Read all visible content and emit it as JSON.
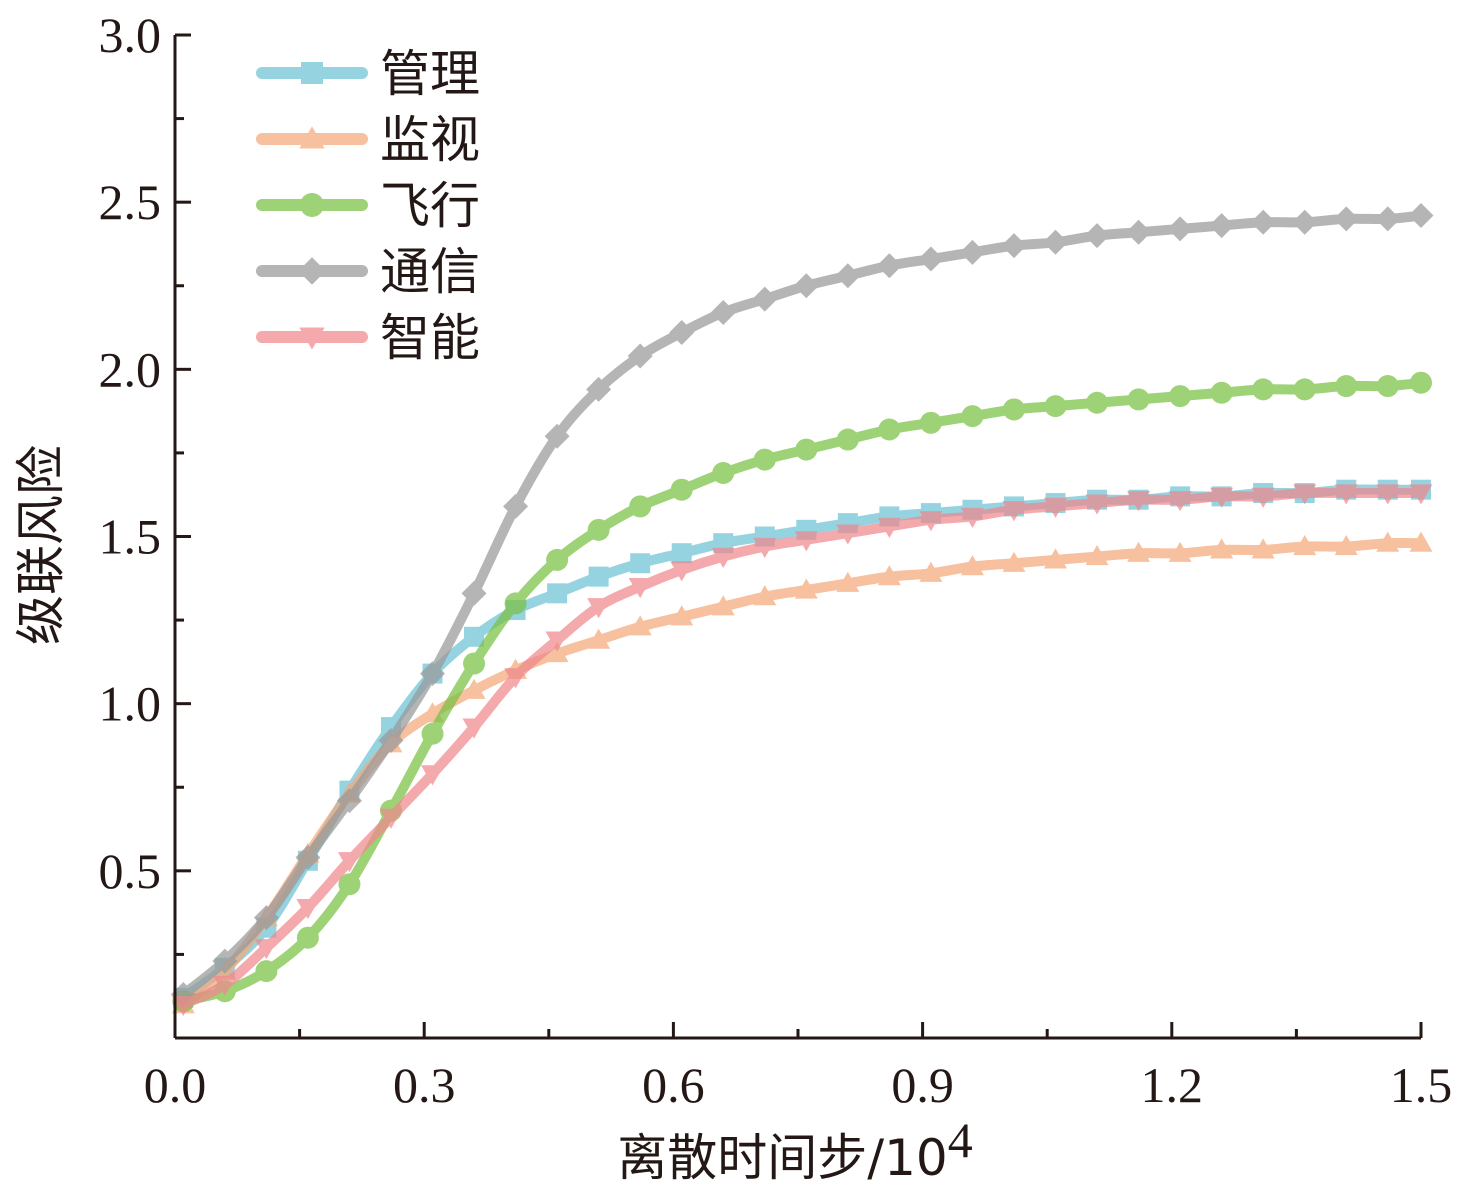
{
  "chart_data": {
    "type": "line",
    "xlabel": "离散时间步/10",
    "xlabel_sup": "4",
    "ylabel": "级联风险",
    "xlim": [
      0.0,
      1.5
    ],
    "ylim": [
      0.0,
      3.0
    ],
    "xticks": [
      "0.0",
      "0.3",
      "0.6",
      "0.9",
      "1.2",
      "1.5"
    ],
    "yticks": [
      "0.5",
      "1.0",
      "1.5",
      "2.0",
      "2.5",
      "3.0"
    ],
    "legend_position": "top-left",
    "x": [
      0.01,
      0.06,
      0.11,
      0.16,
      0.21,
      0.26,
      0.31,
      0.36,
      0.41,
      0.46,
      0.51,
      0.56,
      0.61,
      0.66,
      0.71,
      0.76,
      0.81,
      0.86,
      0.91,
      0.96,
      1.01,
      1.06,
      1.11,
      1.16,
      1.21,
      1.26,
      1.31,
      1.36,
      1.41,
      1.46,
      1.5
    ],
    "series": [
      {
        "name": "管理",
        "color": "#6cc3d3",
        "marker": "square",
        "values": [
          0.12,
          0.21,
          0.33,
          0.53,
          0.74,
          0.93,
          1.09,
          1.2,
          1.28,
          1.33,
          1.38,
          1.42,
          1.45,
          1.48,
          1.5,
          1.52,
          1.54,
          1.56,
          1.57,
          1.58,
          1.59,
          1.6,
          1.61,
          1.61,
          1.62,
          1.62,
          1.63,
          1.63,
          1.64,
          1.64,
          1.64
        ]
      },
      {
        "name": "监视",
        "color": "#f5a97a",
        "marker": "triangle-up",
        "values": [
          0.1,
          0.2,
          0.36,
          0.55,
          0.73,
          0.88,
          0.97,
          1.04,
          1.1,
          1.15,
          1.19,
          1.23,
          1.26,
          1.29,
          1.32,
          1.34,
          1.36,
          1.38,
          1.39,
          1.41,
          1.42,
          1.43,
          1.44,
          1.45,
          1.45,
          1.46,
          1.46,
          1.47,
          1.47,
          1.48,
          1.48
        ]
      },
      {
        "name": "飞行",
        "color": "#7ac143",
        "marker": "circle",
        "values": [
          0.11,
          0.14,
          0.2,
          0.3,
          0.46,
          0.68,
          0.91,
          1.12,
          1.3,
          1.43,
          1.52,
          1.59,
          1.64,
          1.69,
          1.73,
          1.76,
          1.79,
          1.82,
          1.84,
          1.86,
          1.88,
          1.89,
          1.9,
          1.91,
          1.92,
          1.93,
          1.94,
          1.94,
          1.95,
          1.95,
          1.96
        ]
      },
      {
        "name": "通信",
        "color": "#999999",
        "marker": "diamond",
        "values": [
          0.13,
          0.23,
          0.36,
          0.54,
          0.71,
          0.89,
          1.09,
          1.33,
          1.59,
          1.8,
          1.94,
          2.04,
          2.11,
          2.17,
          2.21,
          2.25,
          2.28,
          2.31,
          2.33,
          2.35,
          2.37,
          2.38,
          2.4,
          2.41,
          2.42,
          2.43,
          2.44,
          2.44,
          2.45,
          2.45,
          2.46
        ]
      },
      {
        "name": "智能",
        "color": "#f0888e",
        "marker": "triangle-down",
        "values": [
          0.1,
          0.16,
          0.27,
          0.39,
          0.53,
          0.66,
          0.79,
          0.93,
          1.08,
          1.19,
          1.29,
          1.35,
          1.4,
          1.44,
          1.47,
          1.49,
          1.51,
          1.53,
          1.55,
          1.56,
          1.58,
          1.59,
          1.6,
          1.61,
          1.61,
          1.62,
          1.62,
          1.63,
          1.63,
          1.63,
          1.63
        ]
      }
    ]
  }
}
